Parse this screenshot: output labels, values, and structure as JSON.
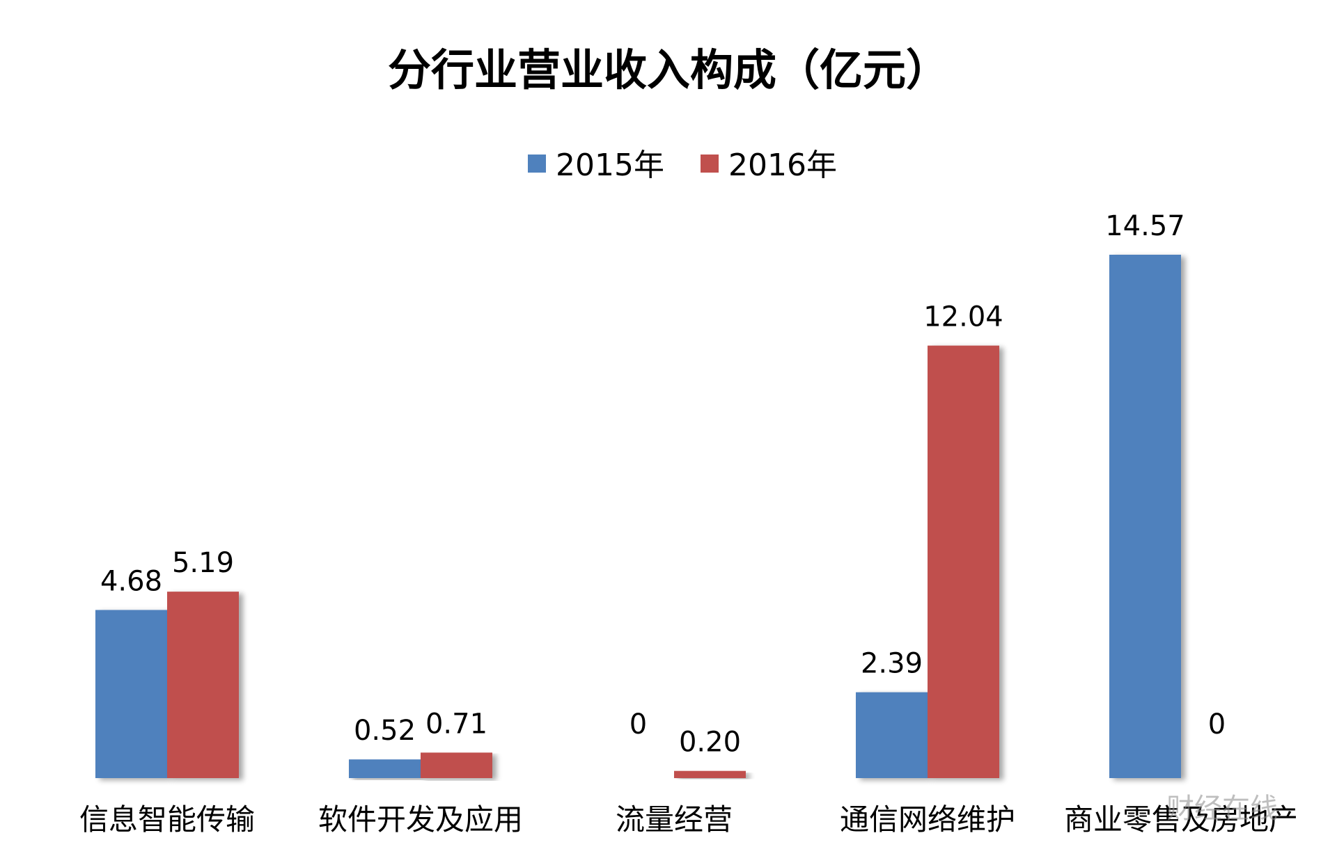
{
  "chart_data": {
    "type": "bar",
    "title": "分行业营业收入构成（亿元）",
    "categories": [
      "信息智能传输",
      "软件开发及应用",
      "流量经营",
      "通信网络维护",
      "商业零售及房地产"
    ],
    "series": [
      {
        "name": "2015年",
        "values": [
          4.68,
          0.52,
          0,
          2.39,
          14.57
        ],
        "labels": [
          "4.68",
          "0.52",
          "0",
          "2.39",
          "14.57"
        ],
        "color": "#4F81BD"
      },
      {
        "name": "2016年",
        "values": [
          5.19,
          0.71,
          0.2,
          12.04,
          0
        ],
        "labels": [
          "5.19",
          "0.71",
          "0.20",
          "12.04",
          "0"
        ],
        "color": "#C0504D"
      }
    ],
    "xlabel": "",
    "ylabel": "",
    "ylim": [
      0,
      14.57
    ],
    "grid": false,
    "legend_position": "top-center"
  },
  "watermark": "财经在线"
}
